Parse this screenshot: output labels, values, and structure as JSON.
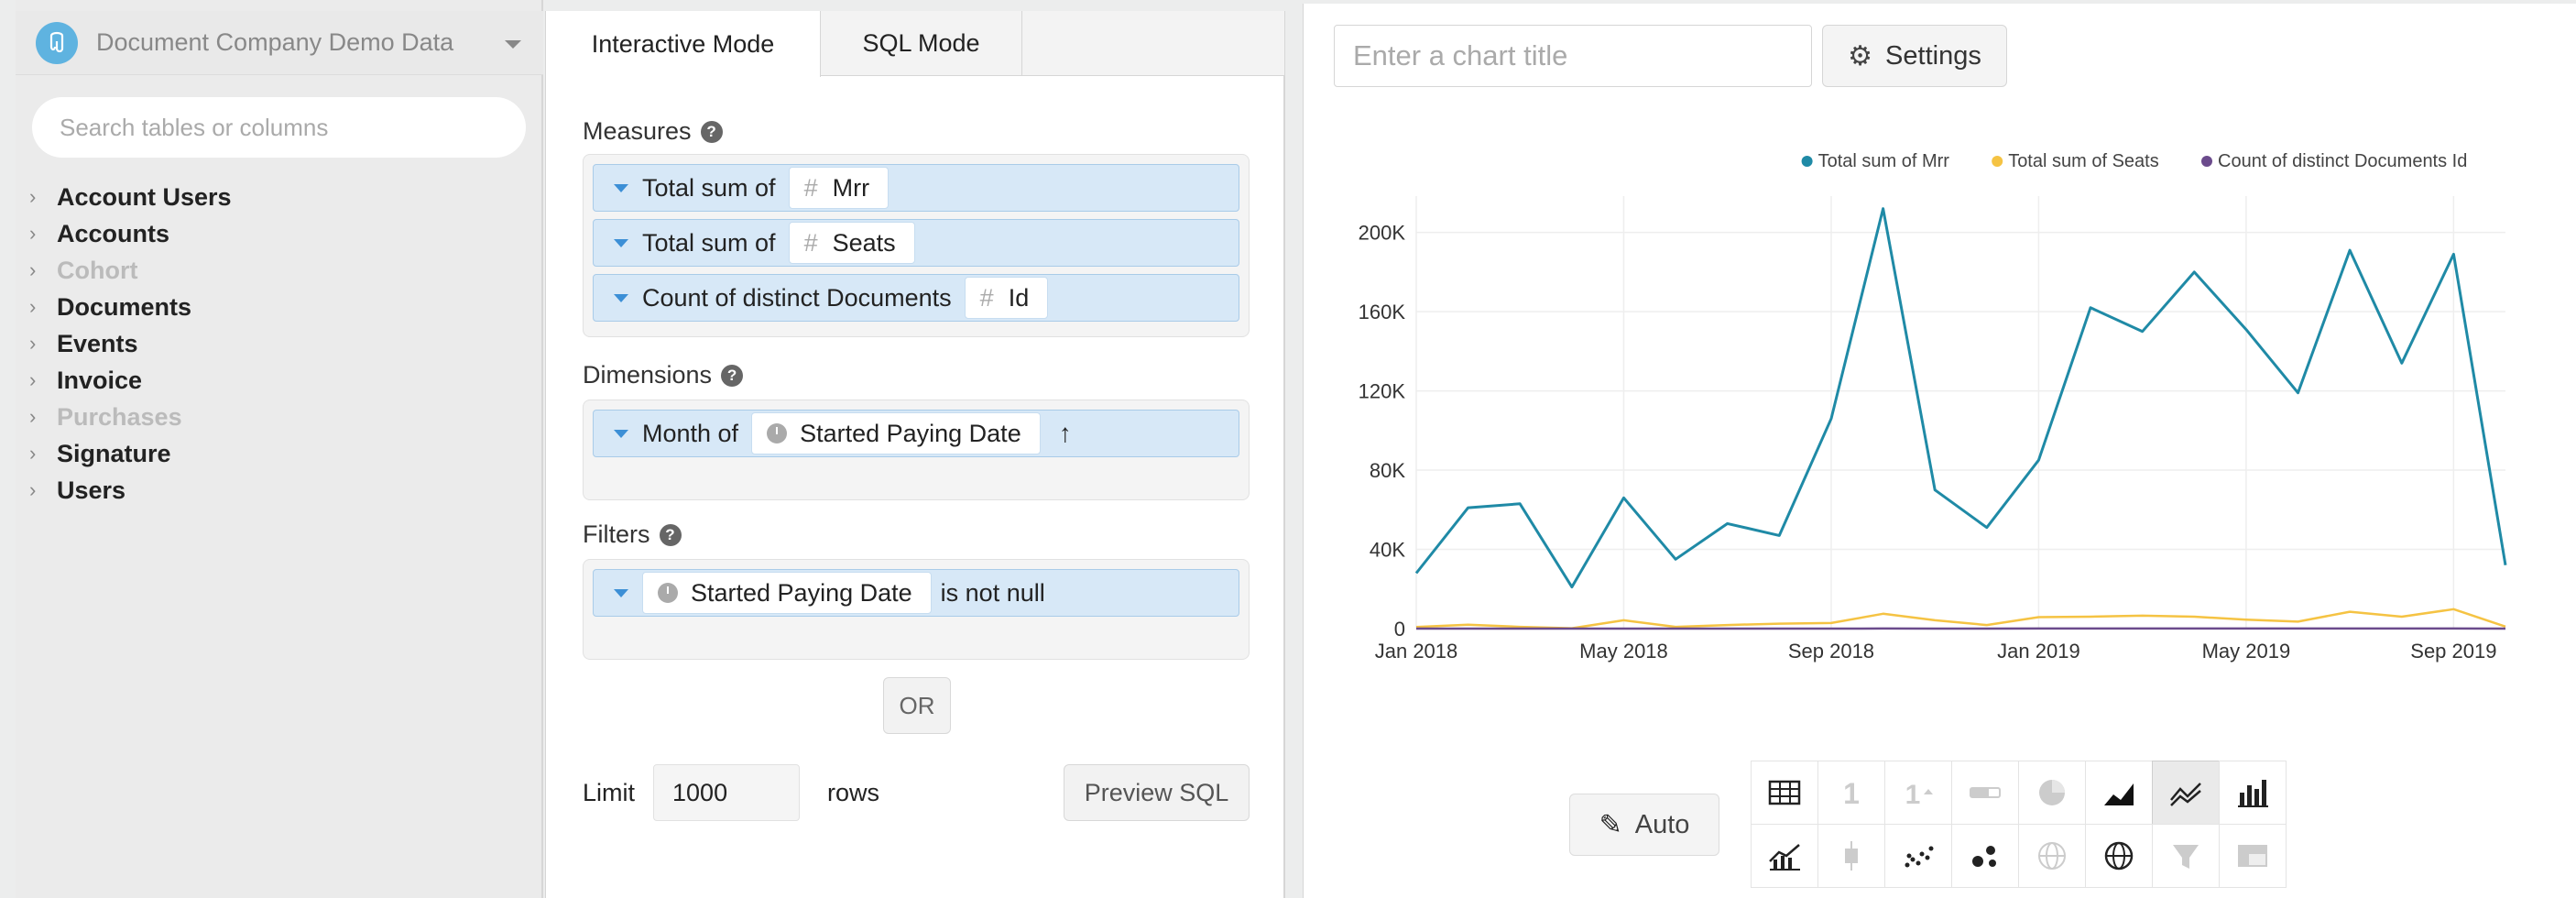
{
  "datasource": {
    "name": "Document Company Demo Data"
  },
  "search": {
    "placeholder": "Search tables or columns"
  },
  "tables": [
    {
      "label": "Account Users",
      "enabled": true
    },
    {
      "label": "Accounts",
      "enabled": true
    },
    {
      "label": "Cohort",
      "enabled": false
    },
    {
      "label": "Documents",
      "enabled": true
    },
    {
      "label": "Events",
      "enabled": true
    },
    {
      "label": "Invoice",
      "enabled": true
    },
    {
      "label": "Purchases",
      "enabled": false
    },
    {
      "label": "Signature",
      "enabled": true
    },
    {
      "label": "Users",
      "enabled": true
    }
  ],
  "tabs": {
    "interactive": "Interactive Mode",
    "sql": "SQL Mode"
  },
  "measures": {
    "label": "Measures",
    "help": "?",
    "items": [
      {
        "agg": "Total sum of",
        "field": "Mrr",
        "icon": "#"
      },
      {
        "agg": "Total sum of",
        "field": "Seats",
        "icon": "#"
      },
      {
        "agg": "Count of distinct Documents",
        "field": "Id",
        "icon": "#"
      }
    ]
  },
  "dimensions": {
    "label": "Dimensions",
    "help": "?",
    "items": [
      {
        "agg": "Month of",
        "field": "Started Paying Date",
        "sort": "↑"
      }
    ]
  },
  "filters": {
    "label": "Filters",
    "help": "?",
    "items": [
      {
        "field": "Started Paying Date",
        "condition": "is not null"
      }
    ]
  },
  "or_label": "OR",
  "limit": {
    "label": "Limit",
    "value": "1000",
    "suffix": "rows"
  },
  "preview_sql": "Preview SQL",
  "chart_header": {
    "title_placeholder": "Enter a chart title",
    "settings_label": "Settings"
  },
  "auto_label": "Auto",
  "chart_types": [
    "table-icon",
    "number-icon",
    "number-trend-icon",
    "progress-bar-icon",
    "pie-icon",
    "area-icon",
    "line-icon",
    "bar-icon",
    "combo-icon",
    "box-plot-icon",
    "scatter-icon",
    "bubble-icon",
    "geo-icon",
    "world-map-icon",
    "funnel-icon",
    "pivot-icon"
  ],
  "colors": {
    "mrr": "#1f8aa6",
    "seats": "#f5c343",
    "docs": "#6b4b8c",
    "accent": "#3c8fd6"
  },
  "chart_data": {
    "type": "line",
    "x": [
      "Jan 2018",
      "Feb 2018",
      "Mar 2018",
      "Apr 2018",
      "May 2018",
      "Jun 2018",
      "Jul 2018",
      "Aug 2018",
      "Sep 2018",
      "Oct 2018",
      "Nov 2018",
      "Dec 2018",
      "Jan 2019",
      "Feb 2019",
      "Mar 2019",
      "Apr 2019",
      "May 2019",
      "Jun 2019",
      "Jul 2019",
      "Aug 2019",
      "Sep 2019",
      "Oct 2019"
    ],
    "xticks": [
      "Jan 2018",
      "May 2018",
      "Sep 2018",
      "Jan 2019",
      "May 2019",
      "Sep 2019"
    ],
    "yticks": [
      "0",
      "40K",
      "80K",
      "120K",
      "160K",
      "200K"
    ],
    "ylim": [
      0,
      210000
    ],
    "legend_position": "top-right",
    "grid": true,
    "series": [
      {
        "name": "Total sum of Mrr",
        "values": [
          28000,
          61000,
          63000,
          21000,
          66000,
          35000,
          53000,
          47000,
          106000,
          212000,
          70000,
          51000,
          85000,
          162000,
          150000,
          180000,
          151000,
          119000,
          191000,
          134000,
          189000,
          32000
        ]
      },
      {
        "name": "Total sum of Seats",
        "values": [
          800,
          2000,
          900,
          200,
          4200,
          900,
          1800,
          2500,
          2800,
          7500,
          4200,
          1800,
          5800,
          6000,
          6500,
          6000,
          4500,
          3500,
          8500,
          6000,
          9800,
          1000
        ]
      },
      {
        "name": "Count of distinct Documents Id",
        "values": [
          10,
          15,
          12,
          8,
          18,
          12,
          15,
          17,
          20,
          35,
          22,
          15,
          25,
          30,
          32,
          35,
          30,
          25,
          40,
          30,
          45,
          12
        ]
      }
    ]
  }
}
